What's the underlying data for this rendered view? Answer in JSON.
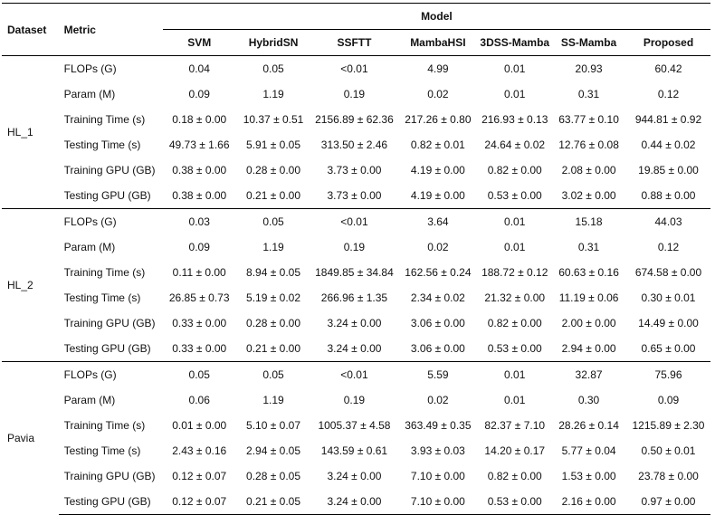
{
  "header": {
    "dataset": "Dataset",
    "metric": "Metric",
    "model": "Model",
    "models": [
      "SVM",
      "HybridSN",
      "SSFTT",
      "MambaHSI",
      "3DSS-Mamba",
      "SS-Mamba",
      "Proposed"
    ]
  },
  "groups": [
    {
      "dataset": "HL_1",
      "rows": [
        {
          "metric": "FLOPs (G)",
          "values": [
            "0.04",
            "0.05",
            "<0.01",
            "4.99",
            "0.01",
            "20.93",
            "60.42"
          ]
        },
        {
          "metric": "Param (M)",
          "values": [
            "0.09",
            "1.19",
            "0.19",
            "0.02",
            "0.01",
            "0.31",
            "0.12"
          ]
        },
        {
          "metric": "Training Time (s)",
          "values": [
            "0.18 ± 0.00",
            "10.37 ± 0.51",
            "2156.89 ± 62.36",
            "217.26 ± 0.80",
            "216.93 ± 0.13",
            "63.77 ± 0.10",
            "944.81 ± 0.92"
          ]
        },
        {
          "metric": "Testing Time (s)",
          "values": [
            "49.73 ± 1.66",
            "5.91 ± 0.05",
            "313.50 ± 2.46",
            "0.82 ± 0.01",
            "24.64 ± 0.02",
            "12.76 ± 0.08",
            "0.44 ± 0.02"
          ]
        },
        {
          "metric": "Training GPU (GB)",
          "values": [
            "0.38 ± 0.00",
            "0.28 ± 0.00",
            "3.73 ± 0.00",
            "4.19 ± 0.00",
            "0.82 ± 0.00",
            "2.08 ± 0.00",
            "19.85 ± 0.00"
          ]
        },
        {
          "metric": "Testing GPU (GB)",
          "values": [
            "0.38 ± 0.00",
            "0.21 ± 0.00",
            "3.73 ± 0.00",
            "4.19 ± 0.00",
            "0.53 ± 0.00",
            "3.02 ± 0.00",
            "0.88 ± 0.00"
          ]
        }
      ]
    },
    {
      "dataset": "HL_2",
      "rows": [
        {
          "metric": "FLOPs (G)",
          "values": [
            "0.03",
            "0.05",
            "<0.01",
            "3.64",
            "0.01",
            "15.18",
            "44.03"
          ]
        },
        {
          "metric": "Param (M)",
          "values": [
            "0.09",
            "1.19",
            "0.19",
            "0.02",
            "0.01",
            "0.31",
            "0.12"
          ]
        },
        {
          "metric": "Training Time (s)",
          "values": [
            "0.11 ± 0.00",
            "8.94 ± 0.05",
            "1849.85 ± 34.84",
            "162.56 ± 0.24",
            "188.72 ± 0.12",
            "60.63 ± 0.16",
            "674.58 ± 0.00"
          ]
        },
        {
          "metric": "Testing Time (s)",
          "values": [
            "26.85 ± 0.73",
            "5.19 ± 0.02",
            "266.96 ± 1.35",
            "2.34 ± 0.02",
            "21.32 ± 0.00",
            "11.19 ± 0.06",
            "0.30 ± 0.01"
          ]
        },
        {
          "metric": "Training GPU (GB)",
          "values": [
            "0.33 ± 0.00",
            "0.28 ± 0.00",
            "3.24 ± 0.00",
            "3.06 ± 0.00",
            "0.82 ± 0.00",
            "2.00 ± 0.00",
            "14.49 ± 0.00"
          ]
        },
        {
          "metric": "Testing GPU (GB)",
          "values": [
            "0.33 ± 0.00",
            "0.21 ± 0.00",
            "3.24 ± 0.00",
            "3.06 ± 0.00",
            "0.53 ± 0.00",
            "2.94 ± 0.00",
            "0.65 ± 0.00"
          ]
        }
      ]
    },
    {
      "dataset": "Pavia",
      "rows": [
        {
          "metric": "FLOPs (G)",
          "values": [
            "0.05",
            "0.05",
            "<0.01",
            "5.59",
            "0.01",
            "32.87",
            "75.96"
          ]
        },
        {
          "metric": "Param (M)",
          "values": [
            "0.06",
            "1.19",
            "0.19",
            "0.02",
            "0.01",
            "0.30",
            "0.09"
          ]
        },
        {
          "metric": "Training Time (s)",
          "values": [
            "0.01 ± 0.00",
            "5.10 ± 0.07",
            "1005.37 ± 4.58",
            "363.49 ± 0.35",
            "82.37 ± 7.10",
            "28.26 ± 0.14",
            "1215.89 ± 2.30"
          ]
        },
        {
          "metric": "Testing Time (s)",
          "values": [
            "2.43 ± 0.16",
            "2.94 ± 0.05",
            "143.59 ± 0.61",
            "3.93 ± 0.03",
            "14.20 ± 0.17",
            "5.77 ± 0.04",
            "0.50 ± 0.01"
          ]
        },
        {
          "metric": "Training GPU (GB)",
          "values": [
            "0.12 ± 0.07",
            "0.28 ± 0.05",
            "3.24 ± 0.00",
            "7.10 ± 0.00",
            "0.82 ± 0.00",
            "1.53 ± 0.00",
            "23.78 ± 0.00"
          ]
        },
        {
          "metric": "Testing GPU (GB)",
          "values": [
            "0.12 ± 0.07",
            "0.21 ± 0.05",
            "3.24 ± 0.00",
            "7.10 ± 0.00",
            "0.53 ± 0.00",
            "2.16 ± 0.00",
            "0.97 ± 0.00"
          ]
        }
      ]
    }
  ]
}
